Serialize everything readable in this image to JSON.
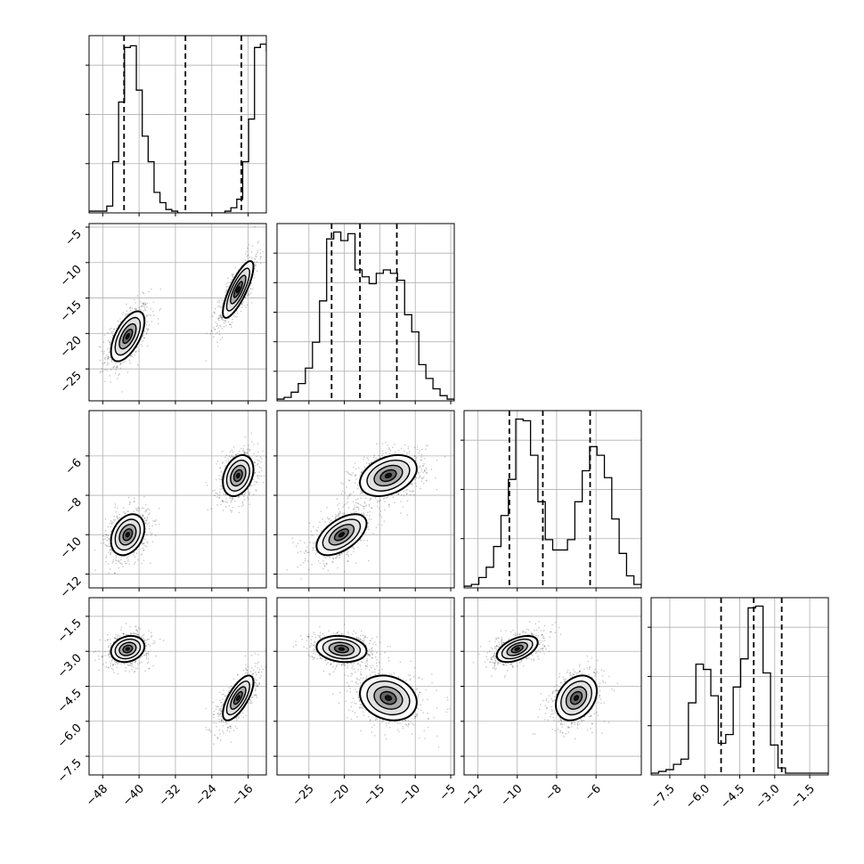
{
  "chart_data": {
    "type": "corner",
    "grid": true,
    "parameters": [
      {
        "range": [
          -51,
          -12
        ],
        "ticks": [
          -48,
          -40,
          -32,
          -24,
          -16
        ],
        "tick_labels": [
          "−48",
          "−40",
          "−32",
          "−24",
          "−16"
        ],
        "quantile_lines": [
          -43.3,
          -29.8,
          -17.5
        ],
        "histogram": {
          "start": -51,
          "bin_width": 1.3,
          "counts": [
            0.01,
            0.01,
            0.01,
            0.04,
            0.3,
            0.65,
            0.97,
            0.98,
            0.72,
            0.45,
            0.3,
            0.12,
            0.06,
            0.02,
            0.01,
            0,
            0,
            0,
            0,
            0,
            0,
            0,
            0,
            0.01,
            0.03,
            0.08,
            0.3,
            0.55,
            0.97,
            0.99,
            0.95,
            0.55,
            0.3,
            0.08,
            0.02,
            0.01,
            0.01,
            0.01,
            0.01,
            0.01
          ]
        },
        "hist_ticks": [
          0.3,
          0.6,
          0.9
        ]
      },
      {
        "range": [
          -29.5,
          -4.5
        ],
        "ticks": [
          -25,
          -20,
          -15,
          -10,
          -5
        ],
        "tick_labels": [
          "−25",
          "−20",
          "−15",
          "−10",
          "−5"
        ],
        "quantile_lines": [
          -21.8,
          -17.8,
          -12.6
        ],
        "histogram": {
          "start": -29.5,
          "bin_width": 1.0,
          "counts": [
            0.01,
            0.02,
            0.05,
            0.1,
            0.19,
            0.34,
            0.58,
            0.94,
            0.98,
            0.93,
            0.97,
            0.76,
            0.72,
            0.68,
            0.74,
            0.76,
            0.74,
            0.7,
            0.5,
            0.4,
            0.21,
            0.13,
            0.07,
            0.03,
            0.01
          ]
        },
        "hist_ticks": [
          0.2,
          0.4,
          0.6,
          0.8,
          1.0
        ]
      },
      {
        "range": [
          -12.7,
          -3.7
        ],
        "ticks": [
          -12,
          -10,
          -8,
          -6
        ],
        "tick_labels": [
          "−12",
          "−10",
          "−8",
          "−6"
        ],
        "quantile_lines": [
          -10.4,
          -8.7,
          -6.3
        ],
        "histogram": {
          "start": -12.7,
          "bin_width": 0.375,
          "counts": [
            0.01,
            0.02,
            0.06,
            0.12,
            0.24,
            0.42,
            0.63,
            0.98,
            0.97,
            0.77,
            0.5,
            0.28,
            0.22,
            0.22,
            0.28,
            0.5,
            0.68,
            0.82,
            0.77,
            0.64,
            0.4,
            0.2,
            0.07,
            0.02
          ]
        },
        "hist_ticks": [
          0.5,
          1.0,
          1.5
        ]
      },
      {
        "range": [
          -8.3,
          -0.7
        ],
        "ticks": [
          -7.5,
          -6.0,
          -4.5,
          -3.0,
          -1.5
        ],
        "tick_labels": [
          "−7.5",
          "−6.0",
          "−4.5",
          "−3.0",
          "−1.5"
        ],
        "quantile_lines": [
          -5.3,
          -3.9,
          -2.7
        ],
        "histogram": {
          "start": -8.3,
          "bin_width": 0.32,
          "counts": [
            0.01,
            0.02,
            0.03,
            0.06,
            0.09,
            0.41,
            0.63,
            0.6,
            0.45,
            0.18,
            0.23,
            0.5,
            0.66,
            0.95,
            0.96,
            0.58,
            0.17,
            0.04,
            0.01,
            0.01,
            0.01,
            0.01,
            0.01,
            0.01
          ]
        },
        "hist_ticks": [
          0.5,
          1.0,
          1.5
        ]
      }
    ],
    "modes": [
      {
        "mean": [
          -42.5,
          -20.4,
          -10.0,
          -2.9
        ],
        "sd": [
          2.3,
          2.2,
          0.65,
          0.35
        ]
      },
      {
        "mean": [
          -18.2,
          -13.8,
          -7.0,
          -5.0
        ],
        "sd": [
          2.1,
          2.5,
          0.65,
          0.6
        ]
      }
    ],
    "correlations": {
      "1-0": [
        0.6,
        0.8
      ],
      "2-0": [
        0.3,
        0.3
      ],
      "2-1": [
        0.55,
        0.35
      ],
      "3-0": [
        0.2,
        0.7
      ],
      "3-1": [
        -0.15,
        -0.2
      ],
      "3-2": [
        0.5,
        0.3
      ]
    }
  }
}
